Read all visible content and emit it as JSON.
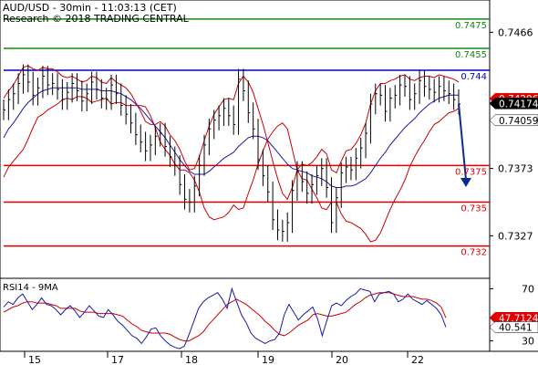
{
  "header": {
    "title": "AUD/USD - 30min - 11:03:13 (CET)",
    "subtitle": "Research © 2018 TRADING CENTRAL"
  },
  "colors": {
    "price": "#000000",
    "bollinger": "#cc0000",
    "moving_average": "#1a1aa8",
    "level_support": "#e00000",
    "level_target": "#118811",
    "level_pivot": "#0000cc",
    "arrow": "#0d2a8a",
    "badge_red": "#e00000",
    "badge_black": "#000000",
    "rsi_line": "#1a1aa8",
    "rsi_ma": "#cc0000"
  },
  "chart_data": [
    {
      "type": "line",
      "name": "price-panel",
      "y_tick_labels": [
        "0.7466",
        "0.7373",
        "0.7327"
      ],
      "x_tick_labels": [
        "15",
        "17",
        "18",
        "19",
        "20",
        "22"
      ],
      "ylim": [
        0.7298,
        0.7488
      ],
      "levels": [
        {
          "value": 0.7475,
          "label": "0.7475",
          "kind": "target"
        },
        {
          "value": 0.7455,
          "label": "0.7455",
          "kind": "target"
        },
        {
          "value": 0.744,
          "label": "0.744",
          "kind": "pivot"
        },
        {
          "value": 0.7375,
          "label": "0.7375",
          "kind": "support"
        },
        {
          "value": 0.735,
          "label": "0.735",
          "kind": "support"
        },
        {
          "value": 0.732,
          "label": "0.732",
          "kind": "support"
        }
      ],
      "price_badges": [
        {
          "value": 0.74206,
          "label": "0.74206",
          "style": "red"
        },
        {
          "value": 0.74174,
          "label": "0.74174",
          "style": "black"
        },
        {
          "value": 0.74059,
          "label": "0.74059",
          "style": "white"
        }
      ],
      "series": [
        {
          "values": [
            0.7413,
            0.742,
            0.7424,
            0.7431,
            0.7437,
            0.7432,
            0.7423,
            0.7428,
            0.7436,
            0.743,
            0.7431,
            0.7427,
            0.742,
            0.7425,
            0.7431,
            0.7426,
            0.7419,
            0.7424,
            0.7432,
            0.7427,
            0.7421,
            0.742,
            0.743,
            0.7424,
            0.7416,
            0.741,
            0.7404,
            0.7396,
            0.7391,
            0.7385,
            0.7389,
            0.7395,
            0.7397,
            0.7388,
            0.7381,
            0.7375,
            0.7362,
            0.7352,
            0.735,
            0.7361,
            0.7375,
            0.7389,
            0.74,
            0.7406,
            0.7409,
            0.7414,
            0.7409,
            0.7403,
            0.7434,
            0.7426,
            0.7411,
            0.74,
            0.7379,
            0.7368,
            0.7357,
            0.7338,
            0.7331,
            0.733,
            0.7336,
            0.7358,
            0.7371,
            0.7364,
            0.7356,
            0.7362,
            0.7368,
            0.7373,
            0.736,
            0.7336,
            0.7353,
            0.737,
            0.7374,
            0.7372,
            0.738,
            0.7387,
            0.7397,
            0.7417,
            0.7424,
            0.7423,
            0.7412,
            0.7421,
            0.7423,
            0.743,
            0.7429,
            0.742,
            0.7424,
            0.7433,
            0.7429,
            0.7427,
            0.7425,
            0.7429,
            0.7426,
            0.7424,
            0.742,
            0.7417
          ]
        },
        {
          "values": [
            0.7394,
            0.74,
            0.7404,
            0.7409,
            0.7414,
            0.7418,
            0.7421,
            0.7424,
            0.7426,
            0.7427,
            0.7428,
            0.7428,
            0.7428,
            0.7428,
            0.7428,
            0.7428,
            0.7427,
            0.7427,
            0.7427,
            0.7427,
            0.7426,
            0.7426,
            0.7426,
            0.7425,
            0.7424,
            0.7422,
            0.742,
            0.7417,
            0.7414,
            0.741,
            0.7406,
            0.7402,
            0.7398,
            0.7394,
            0.7389,
            0.7384,
            0.7379,
            0.7375,
            0.7371,
            0.7369,
            0.7369,
            0.7369,
            0.7371,
            0.7374,
            0.7377,
            0.738,
            0.7382,
            0.7384,
            0.7388,
            0.7391,
            0.7394,
            0.7395,
            0.7395,
            0.7394,
            0.7392,
            0.7388,
            0.7384,
            0.738,
            0.7376,
            0.7373,
            0.7372,
            0.7371,
            0.737,
            0.7368,
            0.7367,
            0.7366,
            0.7364,
            0.7361,
            0.736,
            0.736,
            0.7361,
            0.7361,
            0.7362,
            0.7364,
            0.7366,
            0.737,
            0.7375,
            0.738,
            0.7384,
            0.7389,
            0.7393,
            0.7397,
            0.7401,
            0.7404,
            0.7407,
            0.7411,
            0.7414,
            0.7417,
            0.7419,
            0.7421,
            0.7422,
            0.7423,
            0.7423,
            0.7423
          ]
        },
        {
          "values": [
            0.7421,
            0.7426,
            0.743,
            0.7436,
            0.7442,
            0.7443,
            0.7441,
            0.744,
            0.7442,
            0.7441,
            0.7441,
            0.7439,
            0.7436,
            0.7435,
            0.7436,
            0.7434,
            0.7432,
            0.7433,
            0.7436,
            0.7435,
            0.7432,
            0.7431,
            0.7435,
            0.7432,
            0.743,
            0.7428,
            0.7424,
            0.7418,
            0.7412,
            0.7405,
            0.7403,
            0.7403,
            0.7405,
            0.7402,
            0.7396,
            0.7392,
            0.7386,
            0.7378,
            0.7372,
            0.7373,
            0.7381,
            0.7392,
            0.7402,
            0.741,
            0.7415,
            0.742,
            0.7421,
            0.742,
            0.7431,
            0.7436,
            0.7432,
            0.7425,
            0.7414,
            0.7403,
            0.7391,
            0.7378,
            0.7366,
            0.7356,
            0.7352,
            0.736,
            0.7372,
            0.7376,
            0.7375,
            0.7377,
            0.7381,
            0.7386,
            0.7383,
            0.7372,
            0.737,
            0.7378,
            0.7385,
            0.7386,
            0.739,
            0.7396,
            0.7404,
            0.7417,
            0.7426,
            0.7431,
            0.7431,
            0.7433,
            0.7434,
            0.7436,
            0.7437,
            0.7434,
            0.7433,
            0.7435,
            0.7436,
            0.7436,
            0.7435,
            0.7437,
            0.7436,
            0.7435,
            0.7434,
            0.7432
          ]
        },
        {
          "values": [
            0.7367,
            0.7374,
            0.7378,
            0.7382,
            0.7386,
            0.7393,
            0.7401,
            0.7408,
            0.741,
            0.7413,
            0.7415,
            0.7417,
            0.742,
            0.7421,
            0.742,
            0.7422,
            0.7422,
            0.7421,
            0.7418,
            0.7419,
            0.742,
            0.7421,
            0.7417,
            0.7418,
            0.7418,
            0.7416,
            0.7416,
            0.7416,
            0.7416,
            0.7415,
            0.7409,
            0.7401,
            0.7391,
            0.7386,
            0.7382,
            0.7376,
            0.7372,
            0.7372,
            0.737,
            0.7365,
            0.7357,
            0.7346,
            0.734,
            0.7338,
            0.7339,
            0.734,
            0.7343,
            0.7348,
            0.7345,
            0.7346,
            0.7356,
            0.7365,
            0.7376,
            0.7385,
            0.7393,
            0.7398,
            0.7402,
            0.7404,
            0.74,
            0.7386,
            0.7372,
            0.7366,
            0.7365,
            0.7359,
            0.7353,
            0.7346,
            0.7345,
            0.735,
            0.735,
            0.7342,
            0.7337,
            0.7336,
            0.7334,
            0.7332,
            0.7328,
            0.7323,
            0.7324,
            0.7329,
            0.7337,
            0.7345,
            0.7352,
            0.7358,
            0.7365,
            0.7374,
            0.7381,
            0.7387,
            0.7392,
            0.7398,
            0.7403,
            0.7405,
            0.7408,
            0.7411,
            0.7412,
            0.7414
          ]
        }
      ]
    },
    {
      "type": "line",
      "name": "rsi-panel",
      "title": "RSI14 - 9MA",
      "y_tick_labels": [
        "70",
        "30"
      ],
      "ylim": [
        22,
        78
      ],
      "value_badges": [
        {
          "value": 47.7124,
          "label": "47.7124",
          "style": "red"
        },
        {
          "value": 40.541,
          "label": "40.541",
          "style": "white"
        }
      ],
      "series": [
        {
          "values": [
            56,
            60,
            58,
            63,
            66,
            60,
            54,
            58,
            63,
            58,
            57,
            54,
            50,
            54,
            57,
            53,
            48,
            52,
            57,
            53,
            49,
            48,
            54,
            50,
            45,
            42,
            38,
            34,
            32,
            28,
            33,
            39,
            40,
            34,
            30,
            27,
            25,
            24,
            26,
            35,
            45,
            55,
            60,
            63,
            65,
            67,
            62,
            55,
            70,
            60,
            50,
            44,
            36,
            32,
            30,
            28,
            30,
            31,
            36,
            50,
            58,
            52,
            46,
            50,
            53,
            56,
            47,
            34,
            46,
            57,
            59,
            57,
            61,
            64,
            66,
            70,
            69,
            68,
            60,
            66,
            67,
            68,
            66,
            60,
            62,
            66,
            62,
            60,
            58,
            61,
            58,
            55,
            50,
            40.541
          ]
        },
        {
          "values": [
            52,
            54,
            56,
            57,
            59,
            60,
            60,
            59,
            59,
            59,
            58,
            57,
            55,
            55,
            55,
            55,
            53,
            52,
            52,
            52,
            51,
            51,
            51,
            51,
            50,
            49,
            46,
            43,
            41,
            38,
            37,
            36,
            36,
            36,
            36,
            35,
            33,
            31,
            30,
            30,
            32,
            34,
            37,
            42,
            46,
            50,
            54,
            58,
            60,
            62,
            60,
            58,
            55,
            52,
            49,
            45,
            42,
            38,
            35,
            34,
            36,
            39,
            42,
            44,
            46,
            50,
            51,
            50,
            49,
            49,
            50,
            51,
            52,
            55,
            58,
            60,
            63,
            65,
            66,
            67,
            67,
            67,
            66,
            65,
            64,
            64,
            64,
            63,
            62,
            62,
            61,
            59,
            56,
            47.7124
          ]
        }
      ]
    }
  ]
}
